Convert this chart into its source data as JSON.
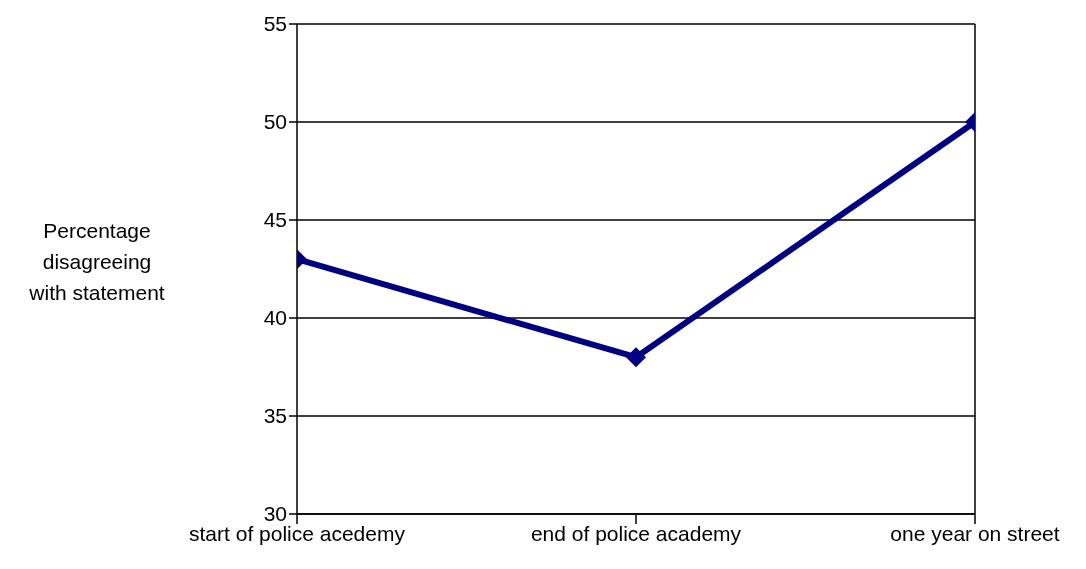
{
  "chart_data": {
    "type": "line",
    "ylabel": "Percentage disagreeing with statement",
    "categories": [
      "start of police acedemy",
      "end of police academy",
      "one year on street"
    ],
    "values": [
      43,
      38,
      50
    ],
    "color": "#000080",
    "marker": "diamond",
    "line_style": "solid",
    "ylim": [
      30,
      55
    ],
    "yticks": [
      30,
      35,
      40,
      45,
      50,
      55
    ],
    "grid": "y"
  }
}
